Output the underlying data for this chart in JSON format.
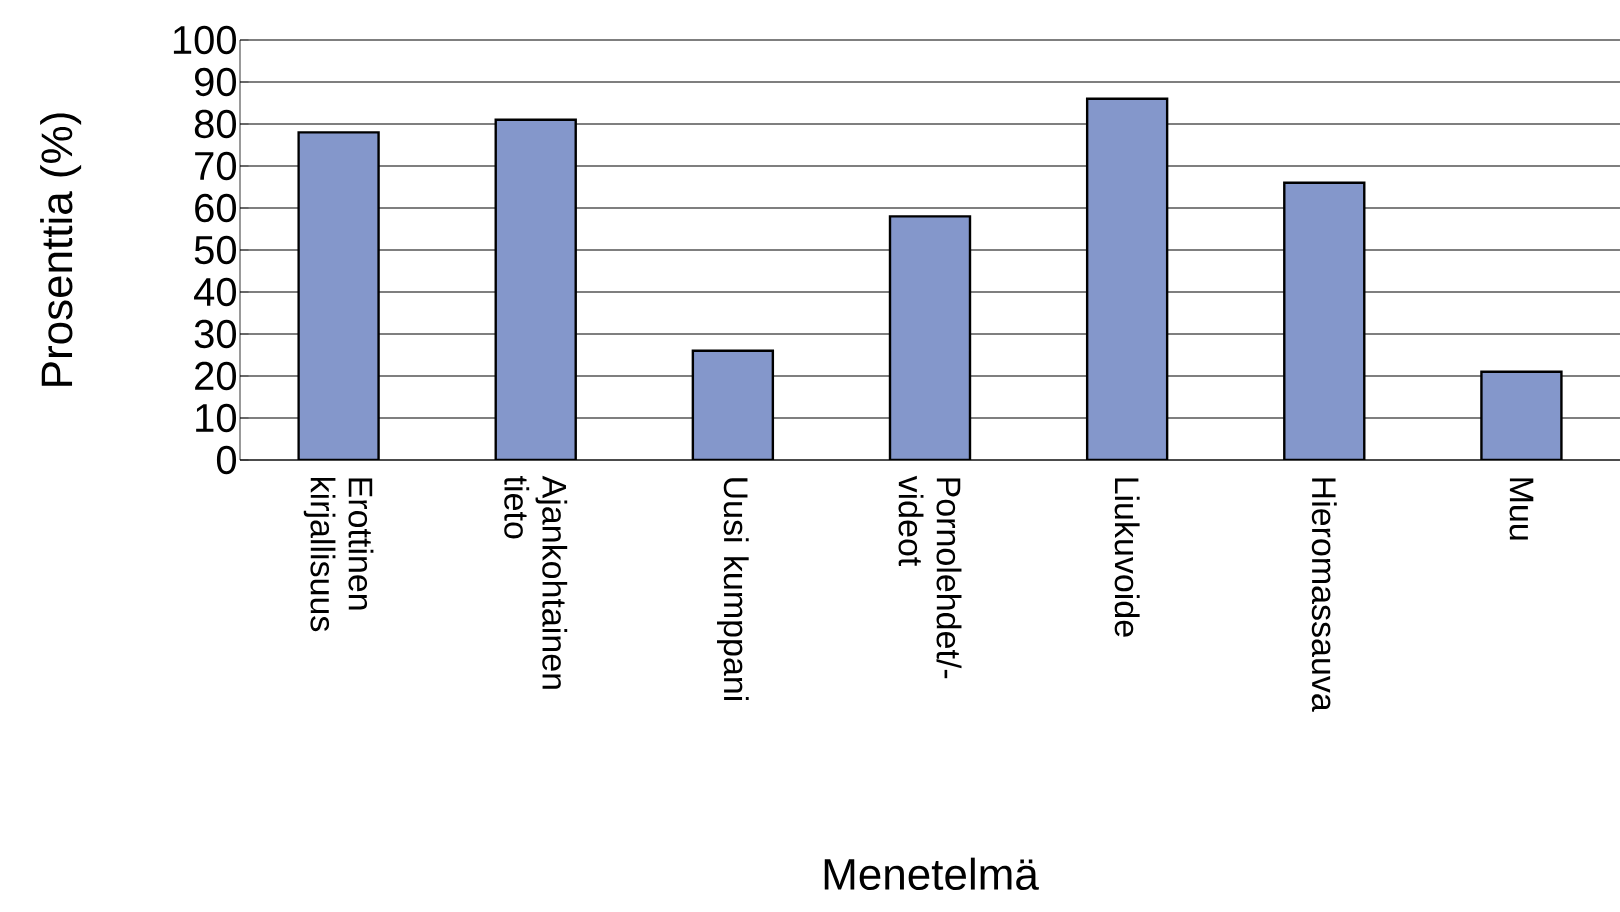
{
  "chart_data": {
    "type": "bar",
    "xlabel": "Menetelmä",
    "ylabel": "Prosenttia (%)",
    "categories": [
      "Erottinen kirjallisuus",
      "Ajankohtainen tieto",
      "Uusi kumppani",
      "Pornolehdet/-videot",
      "Liukuvoide",
      "Hieromassauva",
      "Muu"
    ],
    "values": [
      78,
      81,
      26,
      58,
      86,
      66,
      21
    ],
    "color": "#8497cb",
    "ylim": [
      0,
      100
    ],
    "yticks": [
      0,
      10,
      20,
      30,
      40,
      50,
      60,
      70,
      80,
      90,
      100
    ],
    "grid": "y"
  }
}
